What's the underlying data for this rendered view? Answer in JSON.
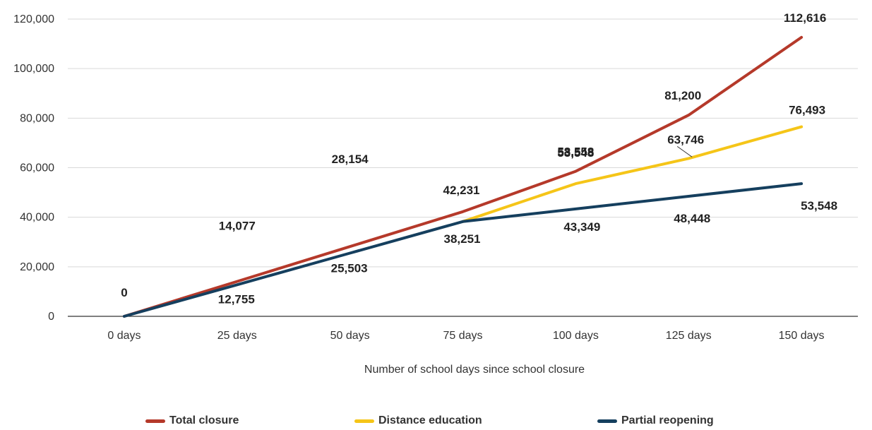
{
  "chart_data": {
    "type": "line",
    "title": "",
    "xlabel": "Number of school days since school closure",
    "ylabel": "",
    "categories": [
      "0 days",
      "25 days",
      "50 days",
      "75 days",
      "100 days",
      "125 days",
      "150 days"
    ],
    "ylim": [
      0,
      120000
    ],
    "yticks": [
      0,
      20000,
      40000,
      60000,
      80000,
      100000,
      120000
    ],
    "ytick_labels": [
      "0",
      "20,000",
      "40,000",
      "60,000",
      "80,000",
      "100,000",
      "120,000"
    ],
    "grid": true,
    "legend_position": "bottom",
    "series": [
      {
        "name": "Total closure",
        "color": "#b5392a",
        "values": [
          0,
          14077,
          28154,
          42231,
          58558,
          81200,
          112616
        ],
        "labels": [
          "0",
          "14,077",
          "28,154",
          "42,231",
          "58,558",
          "81,200",
          "112,616"
        ]
      },
      {
        "name": "Distance education",
        "color": "#f5c518",
        "values": [
          null,
          null,
          null,
          38251,
          53548,
          63746,
          76493
        ],
        "labels": [
          "",
          "",
          "",
          "",
          "53,548",
          "63,746",
          "76,493"
        ]
      },
      {
        "name": "Partial reopening",
        "color": "#153f5e",
        "values": [
          0,
          12755,
          25503,
          38251,
          43349,
          48448,
          53548
        ],
        "labels": [
          "",
          "12,755",
          "25,503",
          "38,251",
          "43,349",
          "48,448",
          "53,548"
        ]
      }
    ]
  }
}
